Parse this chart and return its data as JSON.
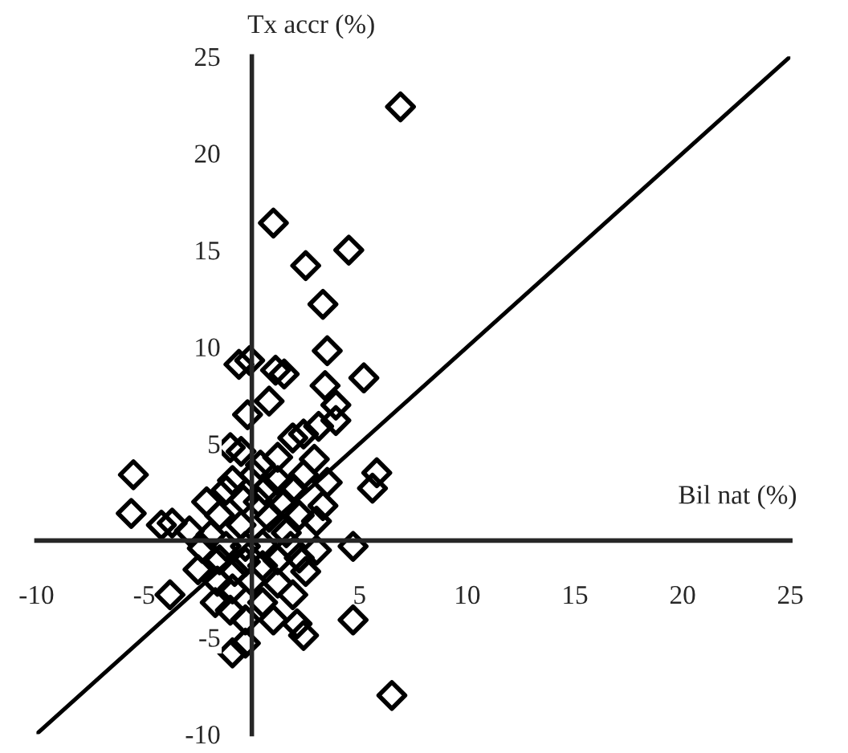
{
  "chart_data": {
    "type": "scatter",
    "xlabel": "Bil nat (%)",
    "ylabel": "Tx accr (%)",
    "xlim": [
      -10,
      25
    ],
    "ylim": [
      -10,
      25
    ],
    "xticks": [
      -10,
      -5,
      5,
      10,
      15,
      20,
      25
    ],
    "yticks": [
      -10,
      -5,
      5,
      10,
      15,
      20,
      25
    ],
    "grid": false,
    "legend": false,
    "marker": "diamond",
    "series": [
      {
        "color": "#000000",
        "x": [
          6.9,
          1.0,
          2.5,
          4.5,
          3.3,
          3.5,
          -0.6,
          -0.1,
          1.1,
          1.5,
          5.2,
          3.4,
          -0.2,
          0.8,
          3.9,
          3.9,
          3.1,
          2.4,
          1.9,
          -1.0,
          -0.5,
          1.2,
          2.9,
          0.4,
          -5.5,
          5.8,
          5.6,
          2.4,
          3.5,
          1.2,
          0.1,
          -0.9,
          0.6,
          1.9,
          -1.2,
          -2.1,
          -0.4,
          1.5,
          3.3,
          -5.6,
          -4.2,
          -3.7,
          -2.9,
          -1.5,
          0.8,
          2.2,
          3.0,
          -0.5,
          -1.9,
          1.6,
          0.5,
          -0.3,
          -1.2,
          -2.3,
          1.8,
          3.0,
          4.7,
          -1.5,
          -0.3,
          1.2,
          2.2,
          -2.5,
          -0.8,
          0.5,
          2.5,
          -1.6,
          0.0,
          1.2,
          -3.8,
          -0.9,
          1.9,
          -1.7,
          0.5,
          -1.0,
          -0.3,
          1.0,
          4.7,
          2.1,
          2.4,
          -0.3,
          -0.9,
          6.5,
          0.3
        ],
        "values": [
          22.4,
          16.4,
          14.2,
          15.0,
          12.2,
          9.8,
          9.1,
          9.3,
          8.8,
          8.6,
          8.4,
          8.0,
          6.5,
          7.2,
          7.0,
          6.2,
          5.9,
          5.5,
          5.3,
          4.8,
          4.6,
          4.3,
          4.2,
          3.9,
          3.4,
          3.5,
          2.7,
          3.4,
          3.0,
          3.1,
          3.4,
          3.1,
          2.6,
          2.7,
          2.6,
          2.0,
          2.1,
          1.9,
          1.8,
          1.4,
          0.8,
          0.9,
          0.5,
          1.3,
          1.2,
          1.3,
          1.0,
          0.8,
          0.3,
          0.4,
          -0.2,
          -0.3,
          -0.3,
          -0.4,
          -0.3,
          -0.5,
          -0.3,
          -1.0,
          -1.1,
          -1.0,
          -0.9,
          -1.5,
          -1.6,
          -1.3,
          -1.6,
          -2.1,
          -2.1,
          -2.2,
          -2.8,
          -2.5,
          -2.8,
          -3.2,
          -3.2,
          -3.6,
          -4.1,
          -4.1,
          -4.1,
          -4.3,
          -4.9,
          -5.3,
          -5.8,
          -8.0,
          2.0
        ]
      },
      {
        "type": "line",
        "color": "#000000",
        "x": [
          -10,
          25
        ],
        "values": [
          -10,
          25
        ],
        "marker": "none"
      }
    ]
  }
}
